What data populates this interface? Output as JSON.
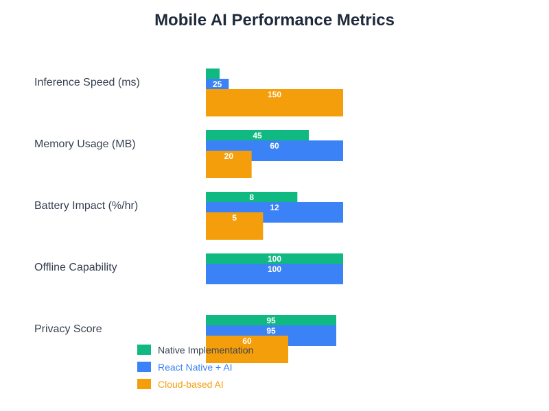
{
  "chart_data": {
    "type": "bar",
    "orientation": "horizontal",
    "title": "Mobile AI Performance Metrics",
    "categories": [
      "Inference Speed (ms)",
      "Memory Usage (MB)",
      "Battery Impact (%/hr)",
      "Offline Capability",
      "Privacy Score"
    ],
    "series": [
      {
        "name": "Native Implementation",
        "color": "#10b981",
        "values": [
          15,
          45,
          8,
          100,
          95
        ],
        "labels": [
          "",
          "45",
          "8",
          "100",
          "95"
        ]
      },
      {
        "name": "React Native + AI",
        "color": "#3b82f6",
        "values": [
          25,
          60,
          12,
          100,
          95
        ],
        "labels": [
          "25",
          "60",
          "12",
          "100",
          "95"
        ]
      },
      {
        "name": "Cloud-based AI",
        "color": "#f59e0b",
        "values": [
          150,
          20,
          5,
          0,
          60
        ],
        "labels": [
          "150",
          "20",
          "5",
          "",
          "60"
        ]
      }
    ],
    "row_max": [
      150,
      60,
      12,
      100,
      100
    ],
    "legend_position": "bottom-left",
    "grid": false,
    "xlabel": "",
    "ylabel": ""
  }
}
